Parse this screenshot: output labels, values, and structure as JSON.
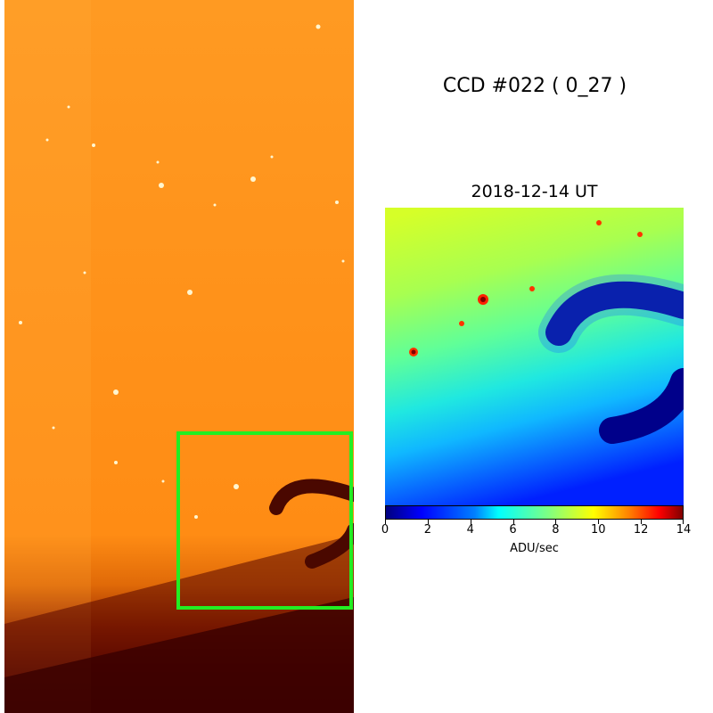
{
  "title": "CCD #022 ( 0_27 )",
  "date_label": "2018-12-14 UT",
  "colorbar": {
    "label": "ADU/sec",
    "ticks": [
      "0",
      "2",
      "4",
      "6",
      "8",
      "10",
      "12",
      "14"
    ],
    "range": [
      0,
      14
    ],
    "colormap": "jet"
  },
  "colors": {
    "highlight_box": "#22ee22",
    "left_background": "#ff9922",
    "left_dark": "#3a0000"
  }
}
